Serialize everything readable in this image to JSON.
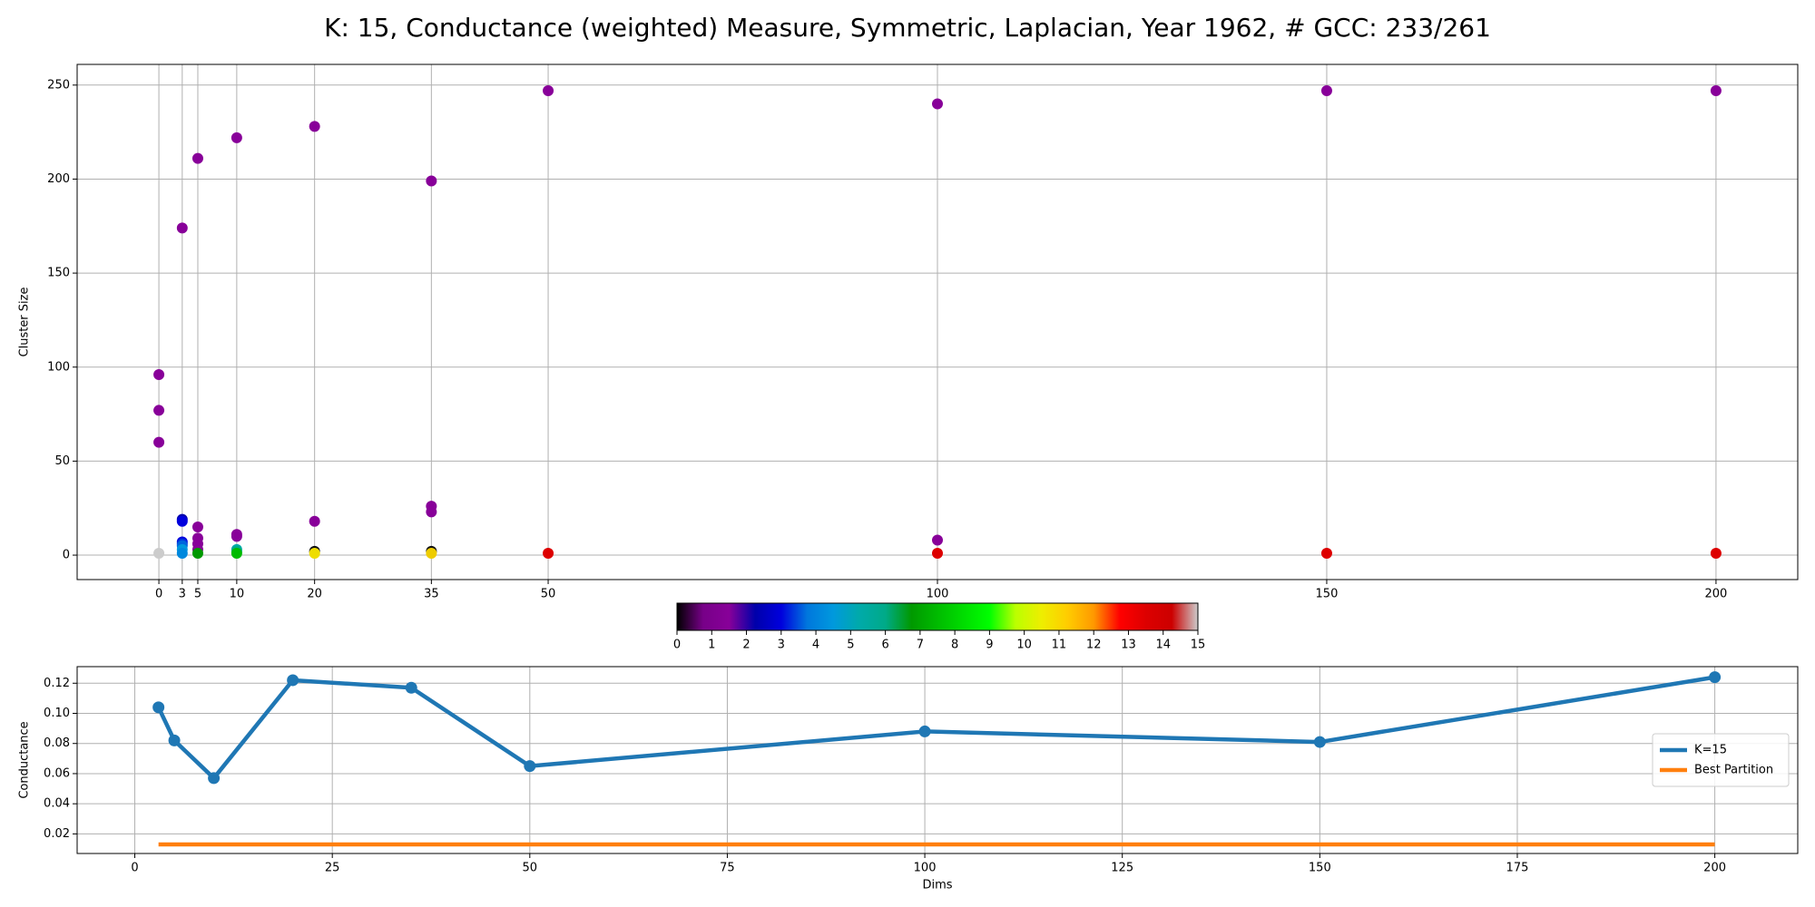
{
  "chart_data": [
    {
      "type": "scatter",
      "title": "K: 15, Conductance (weighted) Measure, Symmetric, Laplacian, Year 1962, # GCC: 233/261",
      "y_label": "Cluster Size",
      "x": [
        0,
        0,
        0,
        0,
        3,
        3,
        3,
        3,
        3,
        3,
        3,
        3,
        5,
        5,
        5,
        5,
        5,
        5,
        10,
        10,
        10,
        10,
        10,
        10,
        20,
        20,
        20,
        20,
        35,
        35,
        35,
        35,
        35,
        50,
        50,
        100,
        100,
        100,
        150,
        150,
        200,
        200
      ],
      "values": [
        96,
        77,
        60,
        1,
        174,
        19,
        18,
        7,
        6,
        5,
        3,
        1,
        211,
        15,
        9,
        6,
        3,
        1,
        222,
        11,
        10,
        3,
        2,
        1,
        228,
        18,
        2,
        1,
        199,
        26,
        23,
        2,
        1,
        247,
        1,
        240,
        8,
        1,
        247,
        1,
        247,
        1
      ],
      "colors": [
        "#880099",
        "#880099",
        "#880099",
        "#cccccc",
        "#880099",
        "#0000aa",
        "#0000dd",
        "#0000dd",
        "#0033dd",
        "#0066dd",
        "#0099dd",
        "#0088dd",
        "#880099",
        "#880099",
        "#880099",
        "#880099",
        "#880099",
        "#009900",
        "#880099",
        "#880099",
        "#880099",
        "#00aaaa",
        "#00aa88",
        "#00bb00",
        "#880099",
        "#880099",
        "#111111",
        "#eedd00",
        "#880099",
        "#880099",
        "#880099",
        "#111111",
        "#eecc00",
        "#880099",
        "#dd0000",
        "#880099",
        "#880099",
        "#dd0000",
        "#880099",
        "#dd0000",
        "#880099",
        "#dd0000"
      ],
      "xlim": [
        -10.5,
        210.5
      ],
      "xticks": [
        0,
        3,
        5,
        10,
        20,
        35,
        50,
        100,
        150,
        200
      ],
      "ylim": [
        -13,
        261
      ],
      "yticks": [
        0,
        50,
        100,
        150,
        200,
        250
      ],
      "grid": true
    },
    {
      "type": "colorbar",
      "colormap": "nipy_spectral",
      "xlim": [
        0,
        15
      ],
      "xticks": [
        0,
        1,
        2,
        3,
        4,
        5,
        6,
        7,
        8,
        9,
        10,
        11,
        12,
        13,
        14,
        15
      ]
    },
    {
      "type": "line",
      "x_label": "Dims",
      "y_label": "Conductance",
      "x": [
        3,
        5,
        10,
        20,
        35,
        50,
        100,
        150,
        200
      ],
      "series": [
        {
          "name": "K=15",
          "color": "#1f77b4",
          "markers": true,
          "values": [
            0.104,
            0.082,
            0.057,
            0.122,
            0.117,
            0.065,
            0.088,
            0.081,
            0.124
          ]
        },
        {
          "name": "Best Partition",
          "color": "#ff7f0e",
          "markers": false,
          "values": [
            0.013,
            0.013,
            0.013,
            0.013,
            0.013,
            0.013,
            0.013,
            0.013,
            0.013
          ]
        }
      ],
      "xlim": [
        -7.3,
        210.5
      ],
      "xticks": [
        0,
        25,
        50,
        75,
        100,
        125,
        150,
        175,
        200
      ],
      "ylim": [
        0.007,
        0.131
      ],
      "yticks": [
        0.02,
        0.04,
        0.06,
        0.08,
        {
          "value": 0.1,
          "label": "0.10"
        },
        0.12
      ],
      "grid": true,
      "legend": "center right"
    }
  ]
}
